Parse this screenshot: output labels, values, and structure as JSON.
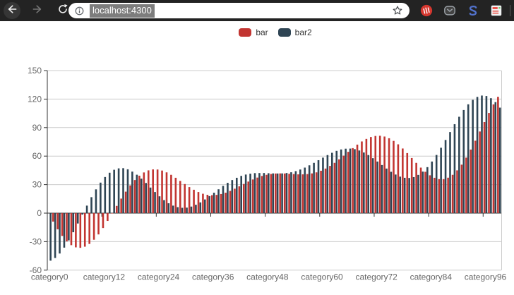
{
  "browser": {
    "url": "localhost:4300",
    "icons": {
      "back": "arrow-left",
      "forward": "arrow-right",
      "reload": "refresh-circular-arrow",
      "site_info": "info-circle",
      "bookmark": "star-outline",
      "extensions": [
        "red-circle-glyphs",
        "pocket-chevron-badge",
        "blue-s-curve",
        "document-with-lines"
      ]
    }
  },
  "chart_data": {
    "type": "bar",
    "title": "",
    "n_points": 100,
    "legend_position": "top-center",
    "grid": "horizontal-lines-on",
    "colors": {
      "bar": "#c23531",
      "bar2": "#2f4554",
      "axis_line": "#333333",
      "grid_line": "#cccccc",
      "axis_label": "#666666"
    },
    "y_axis": {
      "min": -60,
      "max": 150,
      "interval": 30,
      "ticks": [
        150,
        120,
        90,
        60,
        30,
        0,
        -30,
        -60
      ]
    },
    "x_axis": {
      "visible_labels": [
        "category0",
        "category12",
        "category24",
        "category36",
        "category48",
        "category60",
        "category72",
        "category84",
        "category96"
      ],
      "label_indices": [
        0,
        12,
        24,
        36,
        48,
        60,
        72,
        84,
        96
      ],
      "label_interval": 12
    },
    "series": [
      {
        "name": "bar",
        "color": "#c23531",
        "values": [
          0.0,
          -8.9,
          -17.0,
          -24.0,
          -29.7,
          -33.7,
          -36.0,
          -36.5,
          -35.3,
          -32.4,
          -28.0,
          -22.4,
          -15.7,
          -8.2,
          -0.4,
          7.6,
          15.3,
          22.6,
          29.2,
          34.8,
          39.4,
          42.8,
          45.0,
          46.0,
          45.9,
          44.8,
          42.9,
          40.3,
          37.2,
          33.9,
          30.6,
          27.4,
          24.6,
          22.2,
          20.4,
          19.3,
          18.9,
          19.2,
          20.1,
          21.5,
          23.4,
          25.7,
          28.2,
          30.7,
          33.2,
          35.4,
          37.4,
          39.1,
          40.3,
          41.2,
          41.7,
          41.8,
          41.7,
          41.4,
          41.1,
          40.8,
          40.8,
          41.1,
          41.8,
          42.9,
          44.6,
          46.9,
          49.7,
          52.9,
          56.6,
          60.5,
          64.5,
          68.4,
          72.1,
          75.4,
          78.1,
          80.1,
          81.2,
          81.4,
          80.6,
          78.8,
          76.0,
          72.4,
          68.0,
          63.2,
          58.0,
          52.9,
          47.9,
          43.5,
          39.8,
          37.2,
          35.8,
          35.8,
          37.3,
          40.3,
          45.0,
          51.0,
          58.4,
          66.9,
          76.2,
          85.9,
          95.8,
          105.4,
          114.4,
          122.4
        ]
      },
      {
        "name": "bar2",
        "color": "#2f4554",
        "values": [
          -50.0,
          -47.2,
          -42.5,
          -36.3,
          -28.7,
          -20.1,
          -10.9,
          -1.5,
          7.9,
          16.8,
          25.0,
          32.1,
          38.0,
          42.5,
          45.6,
          47.1,
          47.3,
          46.1,
          43.7,
          40.4,
          36.3,
          31.7,
          26.9,
          22.2,
          17.7,
          13.7,
          10.4,
          7.9,
          6.3,
          5.6,
          5.8,
          6.9,
          8.8,
          11.3,
          14.4,
          17.9,
          21.5,
          25.1,
          28.7,
          31.9,
          34.8,
          37.2,
          39.2,
          40.6,
          41.5,
          42.1,
          42.2,
          42.2,
          42.0,
          41.8,
          41.7,
          41.8,
          42.2,
          43.0,
          44.2,
          45.9,
          47.9,
          50.3,
          52.9,
          55.7,
          58.4,
          61.1,
          63.5,
          65.5,
          67.0,
          67.8,
          67.9,
          67.3,
          65.9,
          63.8,
          61.1,
          57.8,
          54.3,
          50.6,
          46.9,
          43.5,
          40.6,
          38.4,
          37.2,
          37.0,
          37.9,
          40.2,
          43.7,
          48.4,
          54.3,
          61.2,
          68.8,
          77.0,
          85.3,
          93.6,
          101.4,
          108.5,
          114.5,
          119.2,
          122.3,
          123.7,
          123.2,
          120.9,
          116.8,
          111.0
        ]
      }
    ]
  }
}
